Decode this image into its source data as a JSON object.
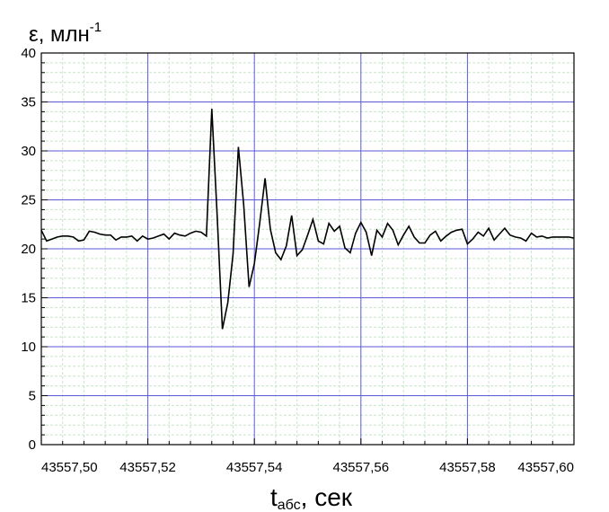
{
  "chart_data": {
    "type": "line",
    "ylabel": "ε, млн",
    "ylabel_superscript": "-1",
    "xlabel": "t",
    "xlabel_subscript": "абс",
    "xlabel_suffix": ", сек",
    "xlim": [
      43557.5,
      43557.6
    ],
    "ylim": [
      0,
      40
    ],
    "grid": true,
    "major_grid_color": "#5a5ad6",
    "minor_grid_color": "#c8e6c8",
    "line_color": "#000000",
    "x_tick_labels": [
      "43557,50",
      "43557,52",
      "43557,54",
      "43557,56",
      "43557,58",
      "43557,60"
    ],
    "y_tick_labels": [
      "0",
      "5",
      "10",
      "15",
      "20",
      "25",
      "30",
      "35",
      "40"
    ],
    "series": [
      {
        "x": [
          43557.5,
          43557.501,
          43557.502,
          43557.503,
          43557.504,
          43557.505,
          43557.506,
          43557.507,
          43557.508,
          43557.509,
          43557.51,
          43557.511,
          43557.512,
          43557.513,
          43557.514,
          43557.515,
          43557.516,
          43557.517,
          43557.518,
          43557.519,
          43557.52,
          43557.521,
          43557.522,
          43557.523,
          43557.524,
          43557.525,
          43557.526,
          43557.527,
          43557.528,
          43557.529,
          43557.53,
          43557.531,
          43557.532,
          43557.533,
          43557.534,
          43557.535,
          43557.536,
          43557.537,
          43557.538,
          43557.539,
          43557.54,
          43557.541,
          43557.542,
          43557.543,
          43557.544,
          43557.545,
          43557.546,
          43557.547,
          43557.548,
          43557.549,
          43557.55,
          43557.551,
          43557.552,
          43557.553,
          43557.554,
          43557.555,
          43557.556,
          43557.557,
          43557.558,
          43557.559,
          43557.56,
          43557.561,
          43557.562,
          43557.563,
          43557.564,
          43557.565,
          43557.566,
          43557.567,
          43557.568,
          43557.569,
          43557.57,
          43557.571,
          43557.572,
          43557.573,
          43557.574,
          43557.575,
          43557.576,
          43557.577,
          43557.578,
          43557.579,
          43557.58,
          43557.581,
          43557.582,
          43557.583,
          43557.584,
          43557.585,
          43557.586,
          43557.587,
          43557.588,
          43557.589,
          43557.59,
          43557.591,
          43557.592,
          43557.593,
          43557.594,
          43557.595,
          43557.596,
          43557.597,
          43557.598,
          43557.599,
          43557.6
        ],
        "y": [
          21.9,
          20.8,
          21.0,
          21.2,
          21.3,
          21.3,
          21.2,
          20.8,
          20.9,
          21.8,
          21.7,
          21.5,
          21.4,
          21.4,
          20.9,
          21.2,
          21.2,
          21.3,
          20.8,
          21.3,
          21.0,
          21.1,
          21.3,
          21.5,
          21.0,
          21.6,
          21.4,
          21.3,
          21.6,
          21.8,
          21.7,
          21.3,
          34.3,
          23.5,
          11.8,
          14.5,
          19.5,
          30.4,
          24.5,
          16.1,
          18.5,
          22.6,
          27.2,
          22.0,
          19.6,
          18.9,
          20.3,
          23.4,
          19.3,
          19.9,
          21.4,
          23.0,
          20.8,
          20.5,
          22.6,
          21.8,
          22.3,
          20.1,
          19.6,
          21.6,
          22.7,
          21.7,
          19.3,
          21.9,
          21.2,
          22.6,
          21.9,
          20.4,
          21.4,
          22.3,
          21.2,
          20.6,
          20.6,
          21.4,
          21.8,
          20.8,
          21.3,
          21.7,
          21.9,
          22.0,
          20.5,
          21.0,
          21.7,
          21.3,
          22.1,
          20.9,
          21.5,
          22.1,
          21.4,
          21.2,
          21.1,
          20.8,
          21.6,
          21.2,
          21.3,
          21.1,
          21.2,
          21.2,
          21.2,
          21.2,
          21.1
        ]
      }
    ]
  }
}
